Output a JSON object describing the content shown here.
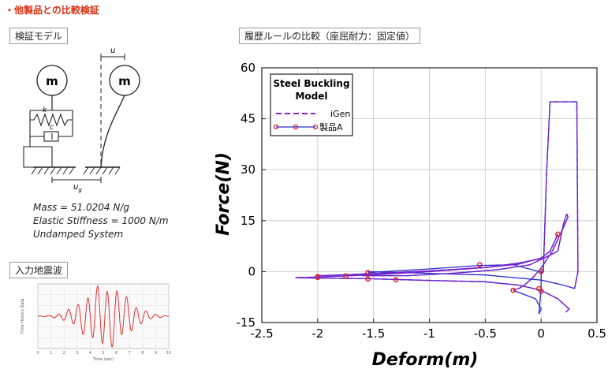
{
  "page": {
    "title": "・他製品との比較検証",
    "model_box_label": "検証モデル",
    "wave_box_label": "入力地震波",
    "hysteresis_box_label": "履歴ルールの比較（座屈耐力：固定値）"
  },
  "model": {
    "mass_label": "m",
    "k_label": "k",
    "c_label": "c",
    "u_label": "u",
    "ug_label": "u",
    "ug_sub": "g",
    "mass_line": "Mass = 51.0204 N/g",
    "stiffness_line": "Elastic Stiffness = 1000 N/m",
    "damping_line": "Undamped System"
  },
  "wave_chart": {
    "ylabel": "Time History Data",
    "xlabel": "Time (sec)",
    "x_ticks": [
      "0",
      "1",
      "2",
      "3",
      "4",
      "5",
      "6",
      "7",
      "8",
      "9",
      "10"
    ],
    "line_color": "#e03030"
  },
  "chart_data": {
    "type": "line",
    "legend_title_1": "Steel Buckling",
    "legend_title_2": "Model",
    "xlabel": "Deform(m)",
    "ylabel": "Force(N)",
    "xlim": [
      -2.5,
      0.5
    ],
    "ylim": [
      -15,
      60
    ],
    "x_ticks": [
      -2.5,
      -2,
      -1.5,
      -1,
      -0.5,
      0,
      0.5
    ],
    "x_tick_labels": [
      "-2.5",
      "-2",
      "-1.5",
      "-1",
      "-0.5",
      "0",
      "0.5"
    ],
    "y_ticks": [
      -15,
      0,
      15,
      30,
      45,
      60
    ],
    "y_tick_labels": [
      "-15",
      "0",
      "15",
      "30",
      "45",
      "60"
    ],
    "legend_position": "top-left",
    "series": [
      {
        "name": "製品A",
        "color": "#2b2bcc",
        "marker_color": "#e02020",
        "style": "solid",
        "paths": [
          [
            [
              0.15,
              11
            ],
            [
              0.08,
              6
            ],
            [
              0,
              4
            ],
            [
              -0.2,
              2.2
            ],
            [
              -0.5,
              1.2
            ],
            [
              -1,
              0
            ],
            [
              -1.5,
              -0.9
            ],
            [
              -2,
              -1.6
            ],
            [
              -2.2,
              -1.8
            ]
          ],
          [
            [
              -2.2,
              -1.8
            ],
            [
              -2,
              -1.9
            ],
            [
              -1.55,
              -2.1
            ],
            [
              -1,
              -2.6
            ],
            [
              -0.5,
              -3
            ],
            [
              -0.2,
              -4
            ],
            [
              0,
              -5.5
            ],
            [
              0.15,
              -8
            ],
            [
              0.25,
              -11
            ],
            [
              0.22,
              -12
            ]
          ],
          [
            [
              -1.6,
              -1.2
            ],
            [
              -1.2,
              -1.2
            ],
            [
              -0.8,
              -0.5
            ],
            [
              -0.4,
              0.5
            ],
            [
              -0.1,
              2
            ],
            [
              0.15,
              6
            ],
            [
              0.2,
              14
            ],
            [
              0.23,
              17
            ]
          ],
          [
            [
              0.23,
              17
            ],
            [
              0.24,
              16
            ],
            [
              0.2,
              13
            ],
            [
              0.1,
              6
            ],
            [
              0,
              1
            ],
            [
              -0.08,
              -2
            ],
            [
              -0.15,
              -4
            ],
            [
              -0.2,
              -5
            ],
            [
              -0.25,
              -5.5
            ]
          ],
          [
            [
              -0.25,
              -5.5
            ],
            [
              -0.05,
              -8
            ],
            [
              0,
              -11
            ],
            [
              -0.02,
              -12.5
            ]
          ],
          [
            [
              -0.02,
              -12.5
            ],
            [
              0,
              -5
            ],
            [
              0,
              0
            ],
            [
              0.02,
              0
            ]
          ],
          [
            [
              0.02,
              0
            ],
            [
              0.03,
              10
            ],
            [
              0.05,
              30
            ],
            [
              0.08,
              50
            ],
            [
              0.32,
              50
            ],
            [
              0.33,
              0
            ],
            [
              0.3,
              -5
            ]
          ],
          [
            [
              0.3,
              -5
            ],
            [
              0.2,
              -4
            ],
            [
              0,
              -2.5
            ],
            [
              -0.5,
              -1
            ],
            [
              -1,
              -0.5
            ],
            [
              -1.55,
              0
            ]
          ],
          [
            [
              -2.0,
              -1.2
            ],
            [
              -1.5,
              -0.6
            ],
            [
              -1,
              0.2
            ],
            [
              -0.5,
              1.2
            ],
            [
              -0.2,
              2.5
            ],
            [
              0.02,
              4
            ]
          ],
          [
            [
              0.02,
              -0.3
            ],
            [
              -0.25,
              2
            ],
            [
              -0.55,
              1.8
            ],
            [
              -1,
              0.8
            ],
            [
              -1.55,
              -0.3
            ]
          ]
        ],
        "markers": [
          [
            -2.0,
            -1.7
          ],
          [
            -1.55,
            -2.2
          ],
          [
            -1.3,
            -2.4
          ],
          [
            -0.55,
            2.0
          ],
          [
            0.15,
            11
          ],
          [
            -0.25,
            -5.5
          ],
          [
            -0.02,
            -5.0
          ],
          [
            0.0,
            -5.8
          ],
          [
            0.0,
            0.0
          ],
          [
            -1.55,
            -0.3
          ],
          [
            -1.75,
            -1.3
          ],
          [
            -2.0,
            -1.5
          ]
        ]
      },
      {
        "name": "iGen",
        "color": "#8822cc",
        "style": "dashed",
        "paths": [
          [
            [
              0.15,
              11
            ],
            [
              0.08,
              6
            ],
            [
              0,
              4
            ],
            [
              -0.2,
              2.2
            ],
            [
              -0.5,
              1.2
            ],
            [
              -1,
              0
            ],
            [
              -1.5,
              -0.9
            ],
            [
              -2,
              -1.6
            ],
            [
              -2.2,
              -1.8
            ]
          ],
          [
            [
              -2.2,
              -1.8
            ],
            [
              -2,
              -1.9
            ],
            [
              -1.55,
              -2.1
            ],
            [
              -1,
              -2.6
            ],
            [
              -0.5,
              -3
            ],
            [
              -0.2,
              -4
            ],
            [
              0,
              -5.5
            ],
            [
              0.15,
              -8
            ],
            [
              0.25,
              -11
            ],
            [
              0.22,
              -12
            ]
          ],
          [
            [
              -1.6,
              -1.2
            ],
            [
              -1.2,
              -1.2
            ],
            [
              -0.8,
              -0.5
            ],
            [
              -0.4,
              0.5
            ],
            [
              -0.1,
              2
            ],
            [
              0.15,
              6
            ],
            [
              0.2,
              14
            ],
            [
              0.23,
              17
            ]
          ],
          [
            [
              0.02,
              0
            ],
            [
              0.03,
              10
            ],
            [
              0.05,
              30
            ],
            [
              0.08,
              50
            ],
            [
              0.32,
              50
            ],
            [
              0.33,
              0
            ],
            [
              0.3,
              -5
            ]
          ],
          [
            [
              0.23,
              17
            ],
            [
              0.24,
              16
            ],
            [
              0.2,
              13
            ],
            [
              0.1,
              6
            ],
            [
              0,
              1
            ],
            [
              -0.08,
              -2
            ],
            [
              -0.15,
              -4
            ],
            [
              -0.2,
              -5
            ],
            [
              -0.25,
              -5.5
            ]
          ],
          [
            [
              -2.0,
              -1.2
            ],
            [
              -1.5,
              -0.6
            ],
            [
              -1,
              0.2
            ],
            [
              -0.5,
              1.2
            ],
            [
              -0.2,
              2.5
            ],
            [
              0.02,
              4
            ]
          ]
        ]
      }
    ]
  }
}
